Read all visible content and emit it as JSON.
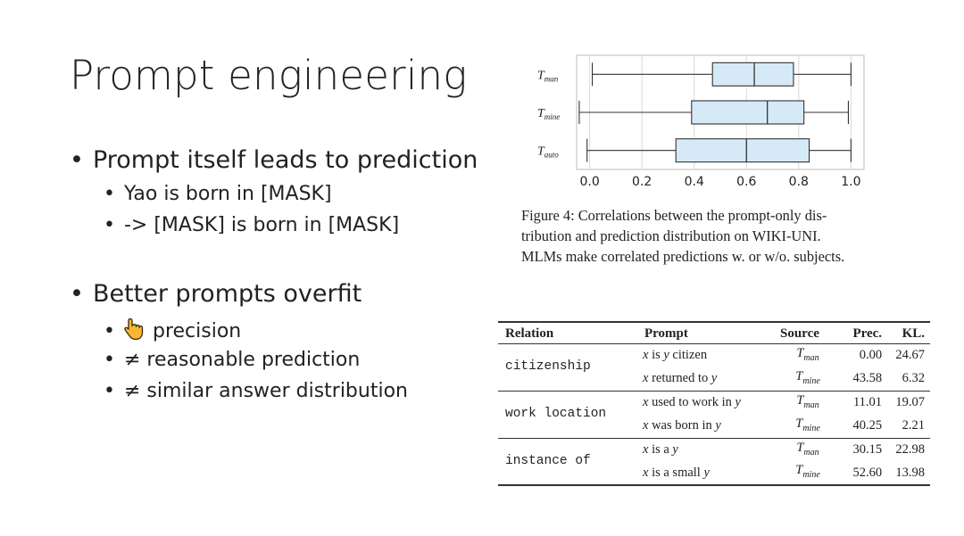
{
  "slide": {
    "title": "Prompt engineering",
    "bullets": [
      {
        "text": "Prompt itself leads to prediction",
        "sub": [
          "Yao is born in [MASK]",
          "-> [MASK] is born in [MASK]"
        ]
      },
      {
        "text": "Better prompts overfit",
        "sub": [
          "precision",
          "≠  reasonable prediction",
          "≠  similar answer distribution"
        ]
      }
    ],
    "bullet_symbol": "•",
    "icons": {
      "first_sub_icon": "pointing-hand-icon"
    }
  },
  "chart_data": {
    "type": "box",
    "categories": [
      "T_man",
      "T_mine",
      "T_auto"
    ],
    "category_labels": [
      {
        "main": "T",
        "sub": "man"
      },
      {
        "main": "T",
        "sub": "mine"
      },
      {
        "main": "T",
        "sub": "auto"
      }
    ],
    "boxes": [
      {
        "min": 0.01,
        "q1": 0.47,
        "median": 0.63,
        "q3": 0.78,
        "max": 1.0
      },
      {
        "min": -0.04,
        "q1": 0.39,
        "median": 0.68,
        "q3": 0.82,
        "max": 0.99
      },
      {
        "min": -0.01,
        "q1": 0.33,
        "median": 0.6,
        "q3": 0.84,
        "max": 1.0
      }
    ],
    "xlim": [
      -0.05,
      1.05
    ],
    "xticks": [
      0.0,
      0.2,
      0.4,
      0.6,
      0.8,
      1.0
    ],
    "xtick_labels": [
      "0.0",
      "0.2",
      "0.4",
      "0.6",
      "0.8",
      "1.0"
    ],
    "grid": true,
    "box_color": "#d6e9f7",
    "caption_lines": [
      "Figure 4:  Correlations between the prompt-only dis-",
      "tribution and prediction distribution on WIKI-UNI.",
      "MLMs make correlated predictions w. or w/o. subjects."
    ]
  },
  "table": {
    "headers": [
      "Relation",
      "Prompt",
      "Source",
      "Prec.",
      "KL."
    ],
    "groups": [
      {
        "relation": "citizenship",
        "rows": [
          {
            "prompt": "x is y citizen",
            "source_main": "T",
            "source_sub": "man",
            "prec": "0.00",
            "kl": "24.67"
          },
          {
            "prompt": "x returned to y",
            "source_main": "T",
            "source_sub": "mine",
            "prec": "43.58",
            "kl": "6.32"
          }
        ]
      },
      {
        "relation": "work location",
        "rows": [
          {
            "prompt": "x used to work in y",
            "source_main": "T",
            "source_sub": "man",
            "prec": "11.01",
            "kl": "19.07"
          },
          {
            "prompt": "x was born in y",
            "source_main": "T",
            "source_sub": "mine",
            "prec": "40.25",
            "kl": "2.21"
          }
        ]
      },
      {
        "relation": "instance of",
        "rows": [
          {
            "prompt": "x is a y",
            "source_main": "T",
            "source_sub": "man",
            "prec": "30.15",
            "kl": "22.98"
          },
          {
            "prompt": "x is a small y",
            "source_main": "T",
            "source_sub": "mine",
            "prec": "52.60",
            "kl": "13.98"
          }
        ]
      }
    ]
  }
}
